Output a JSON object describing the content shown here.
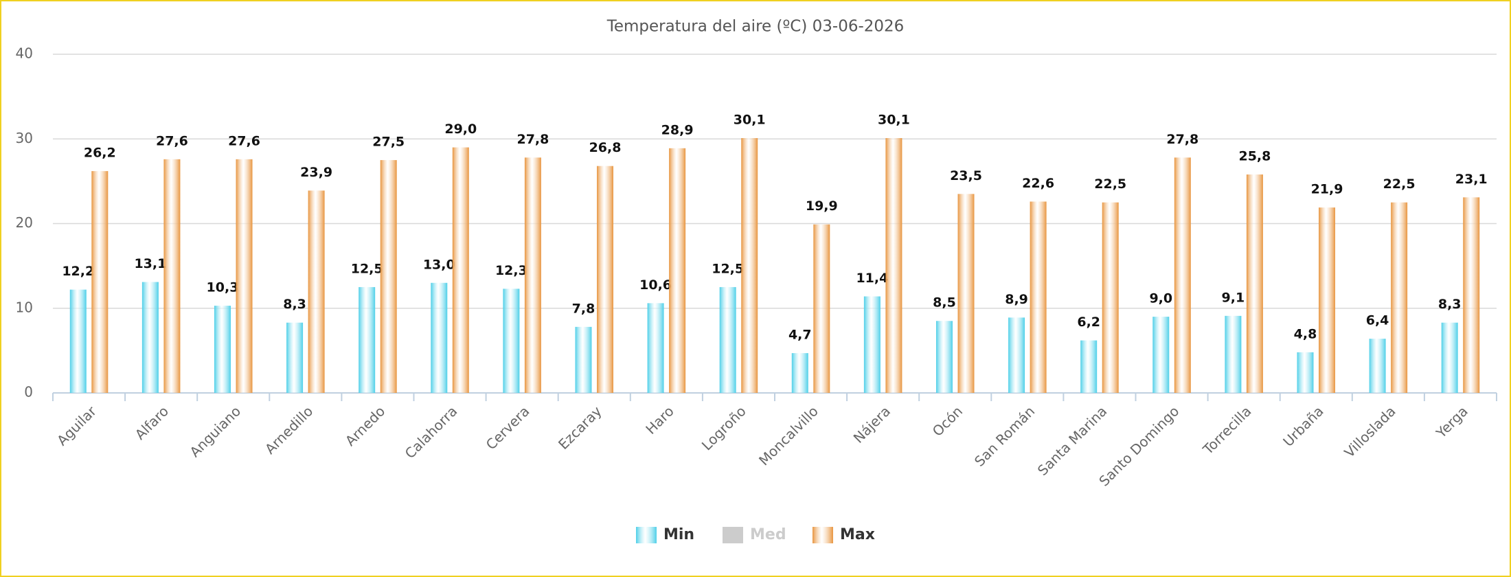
{
  "chart_data": {
    "type": "bar",
    "title": "Temperatura del aire (ºC) 03-06-2026",
    "categories": [
      "Aguilar",
      "Alfaro",
      "Anguiano",
      "Arnedillo",
      "Arnedo",
      "Calahorra",
      "Cervera",
      "Ezcaray",
      "Haro",
      "Logroño",
      "Moncalvillo",
      "Nájera",
      "Ocón",
      "San Román",
      "Santa Marina",
      "Santo Domingo",
      "Torrecilla",
      "Urbaña",
      "Villoslada",
      "Yerga"
    ],
    "series": [
      {
        "name": "Min",
        "color": "#4dcfe8",
        "visible": true,
        "values": [
          12.2,
          13.1,
          10.3,
          8.3,
          12.5,
          13.0,
          12.3,
          7.8,
          10.6,
          12.5,
          4.7,
          11.4,
          8.5,
          8.9,
          6.2,
          9.0,
          9.1,
          4.8,
          6.4,
          8.3
        ],
        "value_labels": [
          "12,2",
          "13,1",
          "10,3",
          "8,3",
          "12,5",
          "13,0",
          "12,3",
          "7,8",
          "10,6",
          "12,5",
          "4,7",
          "11,4",
          "8,5",
          "8,9",
          "6,2",
          "9,0",
          "9,1",
          "4,8",
          "6,4",
          "8,3"
        ]
      },
      {
        "name": "Med",
        "color": "#cccccc",
        "visible": false,
        "values": [
          null,
          null,
          null,
          null,
          null,
          null,
          null,
          null,
          null,
          null,
          null,
          null,
          null,
          null,
          null,
          null,
          null,
          null,
          null,
          null
        ]
      },
      {
        "name": "Max",
        "color": "#e8953f",
        "visible": true,
        "values": [
          26.2,
          27.6,
          27.6,
          23.9,
          27.5,
          29.0,
          27.8,
          26.8,
          28.9,
          30.1,
          19.9,
          30.1,
          23.5,
          22.6,
          22.5,
          27.8,
          25.8,
          21.9,
          22.5,
          23.1
        ],
        "value_labels": [
          "26,2",
          "27,6",
          "27,6",
          "23,9",
          "27,5",
          "29,0",
          "27,8",
          "26,8",
          "28,9",
          "30,1",
          "19,9",
          "30,1",
          "23,5",
          "22,6",
          "22,5",
          "27,8",
          "25,8",
          "21,9",
          "22,5",
          "23,1"
        ]
      }
    ],
    "ylim": [
      0,
      40
    ],
    "yticks": [
      0,
      10,
      20,
      30,
      40
    ],
    "grid": true,
    "legend": "bottom"
  }
}
